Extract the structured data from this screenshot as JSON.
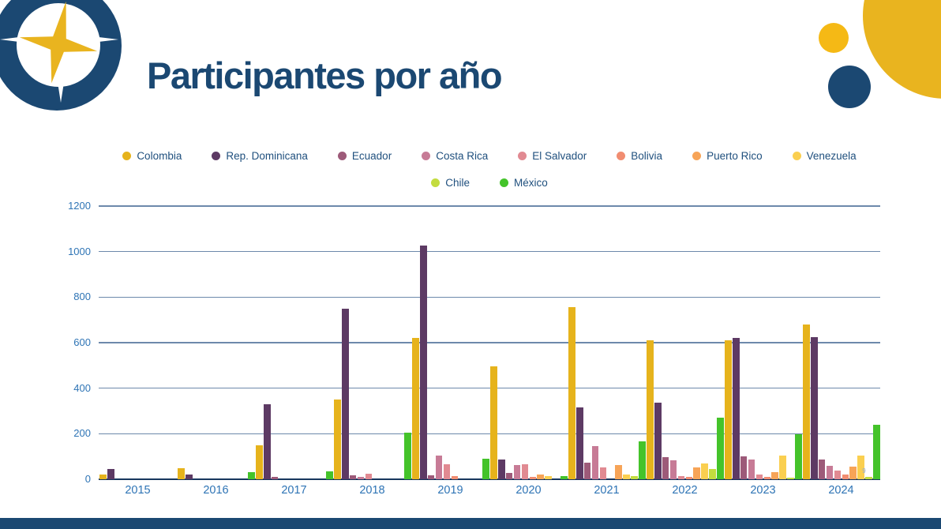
{
  "slide": {
    "title": "Participantes por año"
  },
  "chart_data": {
    "type": "bar",
    "title": "Participantes por año",
    "categories": [
      "2015",
      "2016",
      "2017",
      "2018",
      "2019",
      "2020",
      "2021",
      "2022",
      "2023",
      "2024"
    ],
    "series": [
      {
        "name": "Colombia",
        "color": "#E6B31C",
        "values": [
          20,
          50,
          150,
          352,
          620,
          495,
          755,
          610,
          610,
          680
        ]
      },
      {
        "name": "Rep. Dominicana",
        "color": "#5D3A64",
        "values": [
          45,
          22,
          330,
          748,
          1025,
          88,
          315,
          335,
          620,
          625
        ]
      },
      {
        "name": "Ecuador",
        "color": "#9D5A79",
        "values": [
          0,
          0,
          12,
          18,
          18,
          28,
          74,
          97,
          101,
          88
        ]
      },
      {
        "name": "Costa Rica",
        "color": "#C77B96",
        "values": [
          0,
          0,
          0,
          12,
          105,
          63,
          146,
          84,
          85,
          59
        ]
      },
      {
        "name": "El Salvador",
        "color": "#E18A92",
        "values": [
          0,
          0,
          0,
          25,
          66,
          67,
          52,
          15,
          21,
          39
        ]
      },
      {
        "name": "Bolivia",
        "color": "#F18D71",
        "values": [
          0,
          0,
          0,
          0,
          14,
          10,
          0,
          10,
          9,
          21
        ]
      },
      {
        "name": "Puerto Rico",
        "color": "#F7A457",
        "values": [
          0,
          0,
          0,
          0,
          0,
          22,
          63,
          53,
          30,
          56
        ]
      },
      {
        "name": "Venezuela",
        "color": "#FACF50",
        "values": [
          0,
          0,
          0,
          0,
          0,
          14,
          21,
          68,
          105,
          105
        ]
      },
      {
        "name": "Chile",
        "color": "#C3DC3F",
        "values": [
          0,
          0,
          0,
          0,
          0,
          0,
          13,
          44,
          8,
          9
        ]
      },
      {
        "name": "México",
        "color": "#44C32A",
        "values": [
          0,
          30,
          35,
          205,
          91,
          15,
          167,
          270,
          197,
          240
        ]
      }
    ],
    "ylim": [
      0,
      1200
    ],
    "yticks": [
      0,
      200,
      400,
      600,
      800,
      1000,
      1200
    ],
    "grid": true,
    "legend_position": "top",
    "legend_rows": [
      8,
      2
    ],
    "note": {
      "series": "Chile",
      "category": "2024",
      "text": "9"
    }
  },
  "colors": {
    "navy": "#1B4872",
    "gold": "#E9B41F",
    "axis_label_blue": "#2E74B5",
    "legend_text": "#20507E",
    "gridline": "#6D89AB"
  },
  "icons": {
    "logo": "compass-star-logo"
  }
}
